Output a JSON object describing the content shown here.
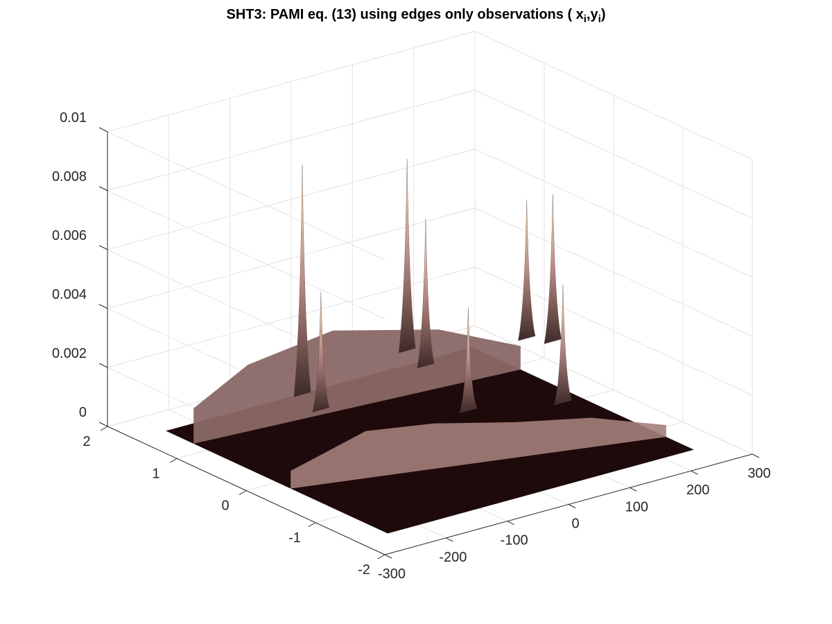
{
  "chart_data": {
    "type": "surface",
    "title": "SHT3: PAMI eq. (13) using edges only observations ( x",
    "title_sub1": "i",
    "title_sep": ",y",
    "title_sub2": "i",
    "title_end": ")",
    "xlabel": "",
    "ylabel": "",
    "zlabel": "",
    "x_ticks": [
      "-300",
      "-200",
      "-100",
      "0",
      "100",
      "200",
      "300"
    ],
    "x_tick_values": [
      -300,
      -200,
      -100,
      0,
      100,
      200,
      300
    ],
    "y_ticks": [
      "-2",
      "-1",
      "0",
      "1",
      "2"
    ],
    "y_tick_values": [
      -2,
      -1,
      0,
      1,
      2
    ],
    "z_ticks": [
      "0",
      "0.002",
      "0.004",
      "0.006",
      "0.008",
      "0.01"
    ],
    "z_tick_values": [
      0,
      0.002,
      0.004,
      0.006,
      0.008,
      0.01
    ],
    "xlim": [
      -300,
      300
    ],
    "ylim": [
      -2,
      2
    ],
    "zlim": [
      0,
      0.01
    ],
    "grid": true,
    "data_extent": {
      "x": [
        -250,
        250
      ],
      "y": [
        -1.6,
        1.6
      ]
    },
    "colormap": "pink",
    "peaks": [
      {
        "x": -95,
        "y": 1.0,
        "z": 0.0088
      },
      {
        "x": -110,
        "y": 0.6,
        "z": 0.005
      },
      {
        "x": 110,
        "y": 1.3,
        "z": 0.0075
      },
      {
        "x": 95,
        "y": 0.9,
        "z": 0.006
      },
      {
        "x": 155,
        "y": -0.55,
        "z": 0.005
      },
      {
        "x": 280,
        "y": 0.7,
        "z": 0.006
      },
      {
        "x": 260,
        "y": 0.9,
        "z": 0.0057
      },
      {
        "x": 40,
        "y": -0.2,
        "z": 0.0045
      }
    ],
    "background_level_z": 0.002
  }
}
